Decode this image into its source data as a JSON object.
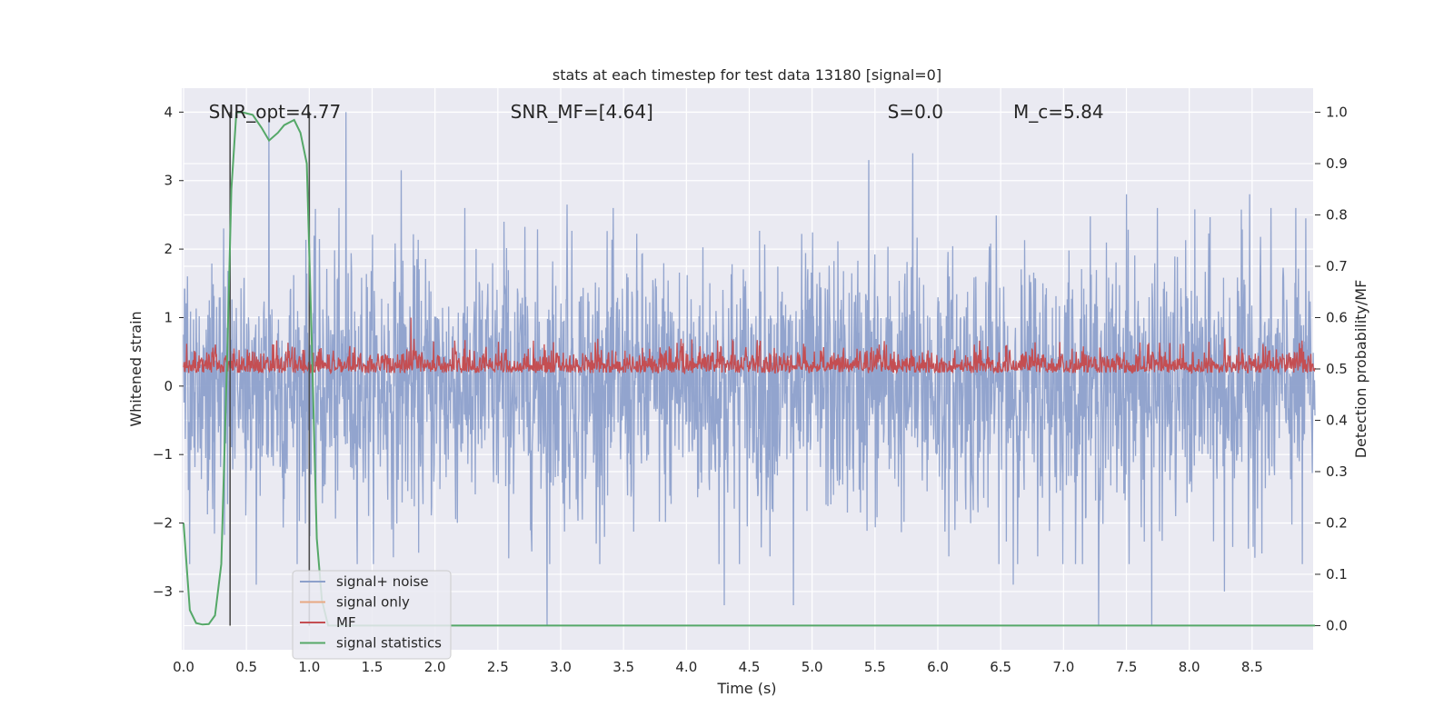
{
  "chart_data": {
    "type": "line",
    "title": "stats at each timestep for test data 13180 [signal=0]",
    "xlabel": "Time (s)",
    "ylabel_left": "Whitened strain",
    "ylabel_right": "Detection probability/MF",
    "xlim": [
      0.0,
      9.0
    ],
    "ylim_left": [
      -3.85,
      4.35
    ],
    "ylim_right": [
      -0.047,
      1.047
    ],
    "x_ticks": [
      "0.0",
      "0.5",
      "1.0",
      "1.5",
      "2.0",
      "2.5",
      "3.0",
      "3.5",
      "4.0",
      "4.5",
      "5.0",
      "5.5",
      "6.0",
      "6.5",
      "7.0",
      "7.5",
      "8.0",
      "8.5"
    ],
    "y_ticks_left": [
      "−3",
      "−2",
      "−1",
      "0",
      "1",
      "2",
      "3",
      "4"
    ],
    "y_ticks_right": [
      "0.0",
      "0.1",
      "0.2",
      "0.3",
      "0.4",
      "0.5",
      "0.6",
      "0.7",
      "0.8",
      "0.9",
      "1.0"
    ],
    "grid": true,
    "legend_position": "lower-left",
    "annotations": [
      {
        "label": "SNR_opt=4.77",
        "x": 0.2,
        "y": 4.03
      },
      {
        "label": "SNR_MF=[4.64]",
        "x": 2.6,
        "y": 4.03
      },
      {
        "label": "S=0.0",
        "x": 5.6,
        "y": 4.03
      },
      {
        "label": "M_c=5.84",
        "x": 6.6,
        "y": 4.03
      }
    ],
    "vertical_lines": [
      0.37,
      1.0
    ],
    "series": [
      {
        "name": "signal+ noise",
        "axis": "left",
        "color": "#8da0cb",
        "note": "whitened strain noise fluctuating between about -3.5 and 4.0",
        "peaks_up": [
          [
            0.05,
            2.7
          ],
          [
            0.68,
            3.9
          ],
          [
            1.29,
            4.0
          ],
          [
            1.73,
            3.15
          ],
          [
            2.55,
            2.4
          ],
          [
            3.05,
            2.65
          ],
          [
            5.45,
            3.3
          ],
          [
            5.8,
            3.4
          ],
          [
            7.5,
            2.8
          ],
          [
            8.48,
            2.8
          ]
        ],
        "peaks_down": [
          [
            0.05,
            -2.6
          ],
          [
            0.58,
            -2.9
          ],
          [
            2.89,
            -3.5
          ],
          [
            4.3,
            -3.2
          ],
          [
            4.85,
            -3.2
          ],
          [
            6.6,
            -2.9
          ],
          [
            7.28,
            -3.5
          ],
          [
            7.7,
            -3.5
          ],
          [
            8.28,
            -3.0
          ],
          [
            8.9,
            -2.6
          ]
        ]
      },
      {
        "name": "signal only",
        "axis": "left",
        "color": "#e8a883",
        "values": []
      },
      {
        "name": "MF",
        "axis": "right",
        "color": "#c44e52",
        "note": "matched filter output fluctuating around 0.5",
        "baseline": 0.5,
        "range": [
          0.47,
          0.56
        ],
        "max": [
          1.81,
          0.6
        ]
      },
      {
        "name": "signal statistics",
        "axis": "right",
        "color": "#55a868",
        "x": [
          0.0,
          0.05,
          0.1,
          0.15,
          0.2,
          0.25,
          0.3,
          0.35,
          0.38,
          0.42,
          0.47,
          0.55,
          0.62,
          0.68,
          0.75,
          0.8,
          0.88,
          0.93,
          0.98,
          1.02,
          1.06,
          1.1,
          1.15,
          1.2,
          1.3,
          9.0
        ],
        "y": [
          0.2,
          0.03,
          0.005,
          0.002,
          0.003,
          0.02,
          0.12,
          0.55,
          0.85,
          1.0,
          1.0,
          0.995,
          0.97,
          0.945,
          0.96,
          0.975,
          0.985,
          0.96,
          0.9,
          0.55,
          0.17,
          0.05,
          0.0,
          0.0,
          0.0,
          0.0
        ]
      }
    ]
  },
  "colors": {
    "plot_background": "#eaeaf2",
    "grid": "#ffffff",
    "signal_noise": "#8da0cb",
    "signal_only": "#e8a883",
    "mf": "#c44e52",
    "signal_statistics": "#55a868",
    "vertical_line": "#4d4d4d"
  },
  "legend": {
    "items": [
      {
        "label": "signal+ noise",
        "color": "#8da0cb"
      },
      {
        "label": "signal only",
        "color": "#e8a883"
      },
      {
        "label": "MF",
        "color": "#c44e52"
      },
      {
        "label": "signal statistics",
        "color": "#55a868"
      }
    ]
  }
}
